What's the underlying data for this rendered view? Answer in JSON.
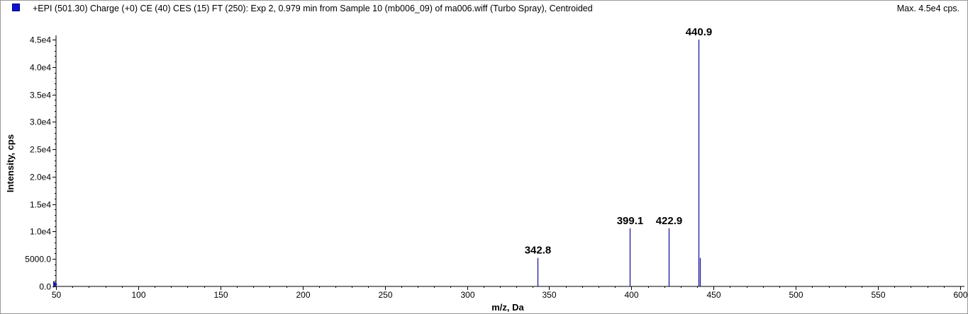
{
  "header": {
    "title": "+EPI (501.30) Charge (+0) CE (40) CES (15) FT (250): Exp 2, 0.979 min from Sample 10 (mb006_09) of ma006.wiff (Turbo Spray), Centroided",
    "max_label": "Max. 4.5e4 cps."
  },
  "colors": {
    "series": "#1a1aa0",
    "marker": "#1010d0"
  },
  "chart_data": {
    "type": "bar",
    "title": "+EPI (501.30) Charge (+0) CE (40) CES (15) FT (250): Exp 2, 0.979 min from Sample 10 (mb006_09) of ma006.wiff (Turbo Spray), Centroided",
    "xlabel": "m/z, Da",
    "ylabel": "Intensity, cps",
    "xlim": [
      50,
      600
    ],
    "ylim": [
      0,
      45000
    ],
    "x_ticks": [
      50,
      100,
      150,
      200,
      250,
      300,
      350,
      400,
      450,
      500,
      550,
      600
    ],
    "x_tick_labels": [
      "50",
      "100",
      "150",
      "200",
      "250",
      "300",
      "350",
      "400",
      "450",
      "500",
      "550",
      "600"
    ],
    "y_ticks": [
      0,
      5000,
      10000,
      15000,
      20000,
      25000,
      30000,
      35000,
      40000,
      45000
    ],
    "y_tick_labels": [
      "0.0",
      "5000.0",
      "1.0e4",
      "1.5e4",
      "2.0e4",
      "2.5e4",
      "3.0e4",
      "3.5e4",
      "4.0e4",
      "4.5e4"
    ],
    "peaks": [
      {
        "mz": 342.8,
        "intensity": 5200,
        "label": "342.8"
      },
      {
        "mz": 399.1,
        "intensity": 10600,
        "label": "399.1"
      },
      {
        "mz": 422.9,
        "intensity": 10600,
        "label": "422.9"
      },
      {
        "mz": 440.9,
        "intensity": 45000,
        "label": "440.9"
      },
      {
        "mz": 441.9,
        "intensity": 5200,
        "label": ""
      }
    ],
    "grid": false
  }
}
